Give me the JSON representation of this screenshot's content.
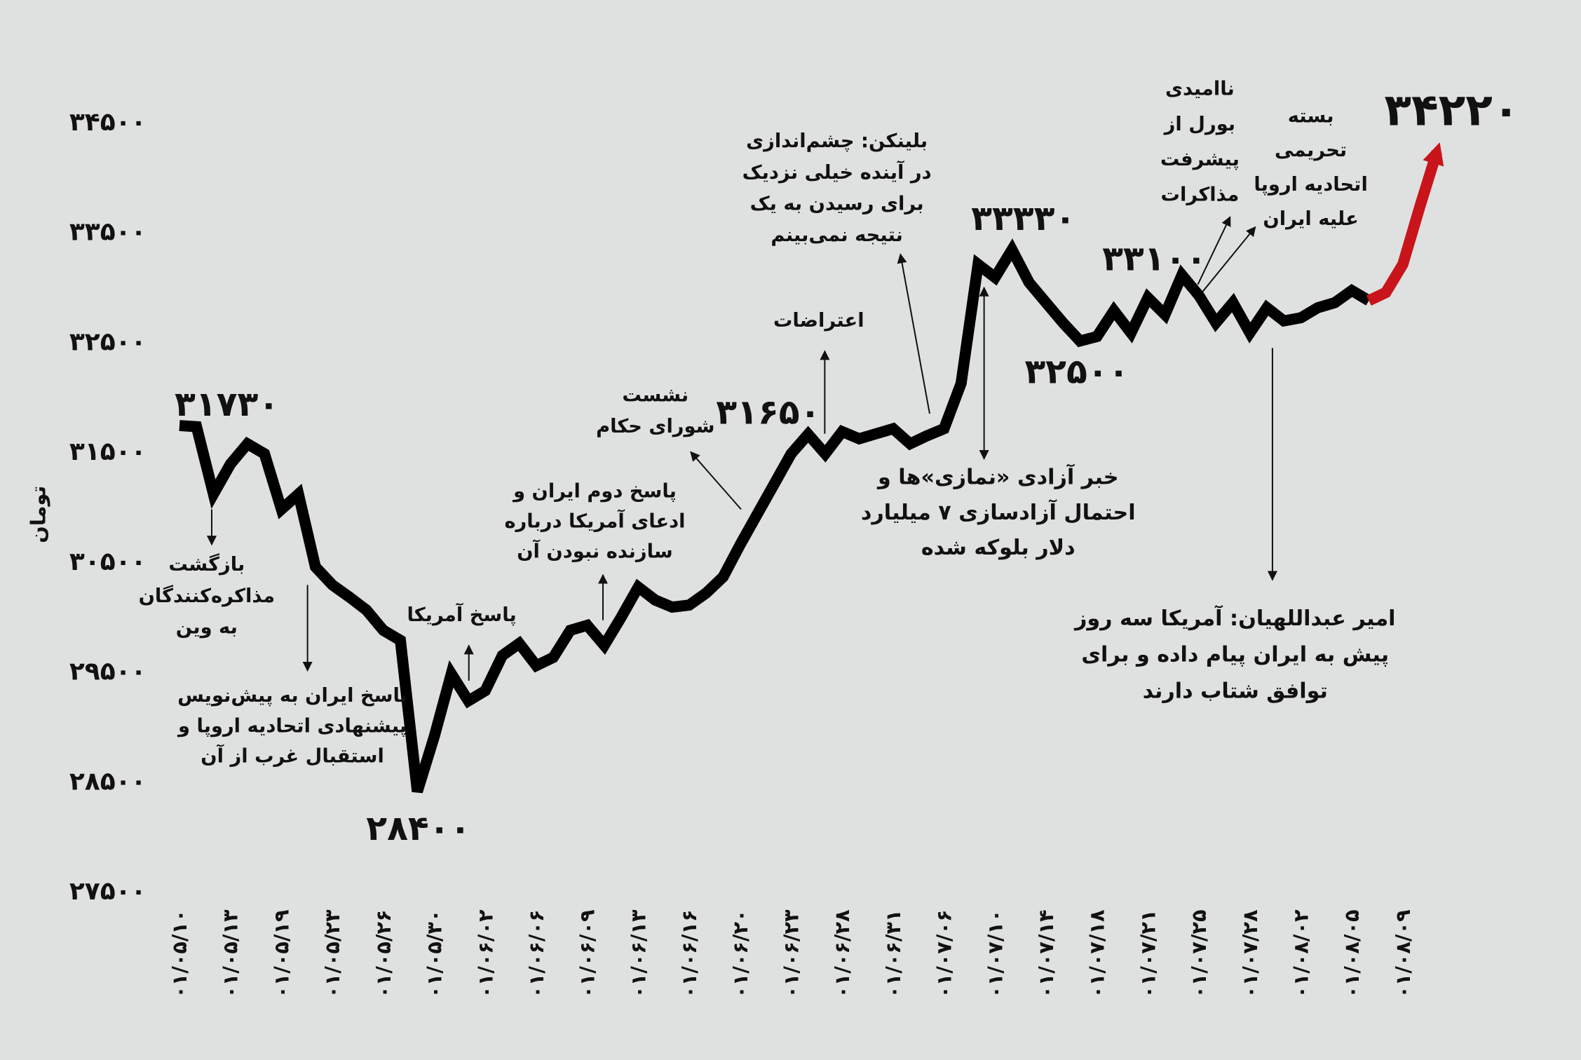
{
  "chart_data": {
    "type": "line",
    "y_label": "تومان",
    "color": "#000000",
    "highlight_color": "#c8141a",
    "highlight_from": 70,
    "ylim": [
      27300,
      35000
    ],
    "yticks": [
      {
        "value": 27500,
        "label": "۲۷۵۰۰"
      },
      {
        "value": 28500,
        "label": "۲۸۵۰۰"
      },
      {
        "value": 29500,
        "label": "۲۹۵۰۰"
      },
      {
        "value": 30500,
        "label": "۳۰۵۰۰"
      },
      {
        "value": 31500,
        "label": "۳۱۵۰۰"
      },
      {
        "value": 32500,
        "label": "۳۲۵۰۰"
      },
      {
        "value": 33500,
        "label": "۳۳۵۰۰"
      },
      {
        "value": 34500,
        "label": "۳۴۵۰۰"
      }
    ],
    "categories": [
      "۰۱/۰۵/۱۰",
      null,
      null,
      "۰۱/۰۵/۱۳",
      null,
      null,
      "۰۱/۰۵/۱۹",
      null,
      null,
      "۰۱/۰۵/۲۳",
      null,
      null,
      "۰۱/۰۵/۲۶",
      null,
      null,
      "۰۱/۰۵/۳۰",
      null,
      null,
      "۰۱/۰۶/۰۲",
      null,
      null,
      "۰۱/۰۶/۰۶",
      null,
      null,
      "۰۱/۰۶/۰۹",
      null,
      null,
      "۰۱/۰۶/۱۳",
      null,
      null,
      "۰۱/۰۶/۱۶",
      null,
      null,
      "۰۱/۰۶/۲۰",
      null,
      null,
      "۰۱/۰۶/۲۳",
      null,
      null,
      "۰۱/۰۶/۲۸",
      null,
      null,
      "۰۱/۰۶/۳۱",
      null,
      null,
      "۰۱/۰۷/۰۶",
      null,
      null,
      "۰۱/۰۷/۱۰",
      null,
      null,
      "۰۱/۰۷/۱۴",
      null,
      null,
      "۰۱/۰۷/۱۸",
      null,
      null,
      "۰۱/۰۷/۲۱",
      null,
      null,
      "۰۱/۰۷/۲۵",
      null,
      null,
      "۰۱/۰۷/۲۸",
      null,
      null,
      "۰۱/۰۸/۰۲",
      null,
      null,
      "۰۱/۰۸/۰۵",
      null,
      null,
      "۰۱/۰۸/۰۹",
      null,
      null
    ],
    "values": [
      31730,
      31720,
      31106,
      31381,
      31564,
      31473,
      30968,
      31106,
      30445,
      30280,
      30170,
      30051,
      29867,
      29775,
      28400,
      28904,
      29472,
      29225,
      29317,
      29638,
      29748,
      29546,
      29620,
      29867,
      29913,
      29730,
      29986,
      30261,
      30142,
      30078,
      30096,
      30206,
      30353,
      30647,
      30922,
      31197,
      31473,
      31650,
      31473,
      31675,
      31610,
      31656,
      31702,
      31564,
      31638,
      31702,
      32115,
      33197,
      33078,
      33330,
      33032,
      32849,
      32665,
      32500,
      32540,
      32775,
      32573,
      32894,
      32739,
      33100,
      32913,
      32665,
      32849,
      32573,
      32803,
      32683,
      32711,
      32803,
      32849,
      32959,
      32867,
      32940,
      33197,
      33720,
      34220
    ],
    "value_labels": [
      "۳۱۷۳۰",
      null,
      null,
      null,
      null,
      null,
      null,
      null,
      null,
      null,
      null,
      null,
      null,
      null,
      "۲۸۴۰۰",
      null,
      null,
      null,
      null,
      null,
      null,
      null,
      null,
      null,
      null,
      null,
      null,
      null,
      null,
      null,
      null,
      null,
      null,
      null,
      null,
      null,
      null,
      "۳۱۶۵۰",
      null,
      null,
      null,
      null,
      null,
      null,
      null,
      null,
      null,
      null,
      null,
      "۳۳۳۳۰",
      null,
      null,
      null,
      "۳۲۵۰۰",
      null,
      null,
      null,
      null,
      null,
      "۳۳۱۰۰",
      null,
      null,
      null,
      null,
      null,
      null,
      null,
      null,
      null,
      null,
      null,
      null,
      null,
      null,
      "۳۴۲۲۰"
    ],
    "annotations": [
      [
        "بازگشت",
        "مذاکره‌کنندگان",
        "به وین"
      ],
      [
        "پاسخ ایران به پیش‌نویس",
        "پیشنهادی اتحادیه اروپا و",
        "استقبال غرب از آن"
      ],
      [
        "پاسخ آمریکا"
      ],
      [
        "پاسخ دوم ایران و",
        "ادعای آمریکا درباره",
        "سازنده نبودن آن"
      ],
      [
        "نشست",
        "شورای حکام"
      ],
      [
        "اعتراضات"
      ],
      [
        "بلینکن: چشم‌اندازی",
        "در آینده خیلی نزدیک",
        "برای رسیدن به یک",
        "نتیجه نمی‌بینم"
      ],
      [
        "خبر آزادی «نمازی»ها و",
        "احتمال آزادسازی ۷ میلیارد",
        "دلار بلوکه شده"
      ],
      [
        "ناامیدی",
        "بورل از",
        "پیشرفت",
        "مذاکرات"
      ],
      [
        "بسته",
        "تحریمی",
        "اتحادیه اروپا",
        "علیه ایران"
      ],
      [
        "امیر عبداللهیان: آمریکا سه روز",
        "پیش به ایران پیام داده و برای",
        "توافق شتاب دارند"
      ]
    ]
  }
}
